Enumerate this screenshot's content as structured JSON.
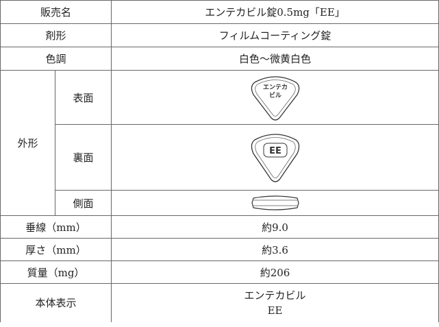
{
  "table": {
    "rows": [
      [
        "販売名",
        "エンテカビル錠0.5mg「EE」"
      ],
      [
        "剤形",
        "フィルムコーティング錠"
      ],
      [
        "色調",
        "白色～微黄白色"
      ]
    ],
    "shape": {
      "label": "外形",
      "rows": [
        {
          "label": "表面",
          "imprint": [
            "エンテカ",
            "ビル"
          ]
        },
        {
          "label": "裏面",
          "imprint": [
            "EE"
          ]
        },
        {
          "label": "側面"
        }
      ]
    },
    "rows2": [
      [
        "垂線（mm）",
        "約9.0"
      ],
      [
        "厚さ（mm）",
        "約3.6"
      ],
      [
        "質量（mg）",
        "約206"
      ]
    ],
    "marking": {
      "label": "本体表示",
      "lines": [
        "エンテカビル",
        "EE"
      ]
    }
  }
}
